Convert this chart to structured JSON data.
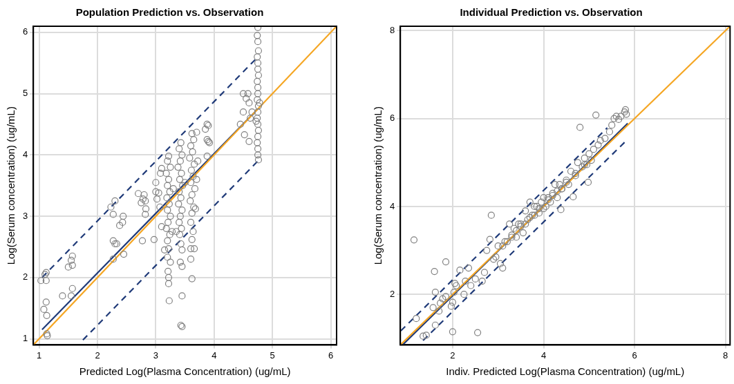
{
  "chart_data": [
    {
      "type": "scatter",
      "title": "Population Prediction vs. Observation",
      "xlabel": "Predicted Log(Plasma Concentration) (ug/mL)",
      "ylabel": "Log(Serum concentration) (ug/mL)",
      "xlim": [
        0.9,
        6.1
      ],
      "ylim": [
        0.9,
        6.1
      ],
      "xticks": [
        1,
        2,
        3,
        4,
        5,
        6
      ],
      "yticks": [
        1,
        2,
        3,
        4,
        5,
        6
      ],
      "grid": true,
      "legend": false,
      "series": [
        {
          "color": "#808080",
          "marker": "circle",
          "x": [
            1.03,
            1.1,
            1.12,
            1.12,
            1.08,
            1.12,
            1.13,
            1.13,
            1.14,
            1.4,
            1.5,
            1.55,
            1.57,
            1.57,
            1.57,
            1.55,
            2.23,
            2.3,
            2.27,
            2.27,
            2.3,
            2.33,
            2.27,
            2.38,
            2.43,
            2.44,
            2.45,
            2.7,
            2.75,
            2.78,
            2.8,
            2.82,
            2.83,
            2.82,
            2.77,
            2.97,
            3.0,
            3.02,
            3.07,
            3.05,
            3.08,
            3.1,
            3.0,
            3.1,
            3.22,
            3.2,
            3.25,
            3.18,
            3.22,
            3.2,
            3.24,
            3.19,
            3.23,
            3.2,
            3.25,
            3.21,
            3.18,
            3.24,
            3.2,
            3.22,
            3.2,
            3.25,
            3.21,
            3.22,
            3.22,
            3.23,
            3.15,
            3.28,
            3.3,
            3.43,
            3.4,
            3.45,
            3.42,
            3.38,
            3.44,
            3.41,
            3.46,
            3.4,
            3.43,
            3.39,
            3.45,
            3.42,
            3.4,
            3.44,
            3.41,
            3.43,
            3.45,
            3.42,
            3.45,
            3.45,
            3.43,
            3.45,
            3.35,
            3.5,
            3.62,
            3.65,
            3.6,
            3.63,
            3.58,
            3.66,
            3.61,
            3.64,
            3.6,
            3.67,
            3.62,
            3.59,
            3.65,
            3.62,
            3.6,
            3.64,
            3.62,
            3.6,
            3.66,
            3.6,
            3.62,
            3.7,
            3.72,
            3.7,
            3.68,
            3.85,
            3.88,
            3.9,
            3.88,
            3.9,
            3.92,
            3.88,
            4.45,
            4.5,
            4.52,
            4.6,
            4.5,
            4.55,
            4.6,
            4.65,
            4.58,
            4.62,
            4.75,
            4.74,
            4.75,
            4.76,
            4.74,
            4.75,
            4.75,
            4.76,
            4.74,
            4.75,
            4.75,
            4.74,
            4.76,
            4.75,
            4.74,
            4.75,
            4.76,
            4.75,
            4.74,
            4.75,
            4.75,
            4.76,
            4.72,
            4.78
          ],
          "values": [
            1.95,
            2.05,
            2.08,
            1.95,
            1.48,
            1.6,
            1.38,
            1.08,
            1.05,
            1.7,
            2.17,
            2.28,
            2.35,
            2.2,
            1.82,
            1.7,
            3.15,
            3.25,
            3.03,
            2.6,
            2.55,
            2.55,
            2.3,
            2.85,
            2.9,
            3.0,
            2.38,
            3.37,
            3.22,
            3.28,
            3.35,
            3.25,
            3.12,
            3.03,
            2.6,
            2.62,
            3.4,
            3.28,
            3.15,
            3.38,
            3.7,
            3.78,
            3.55,
            2.83,
            3.98,
            3.9,
            3.8,
            3.7,
            3.6,
            3.5,
            3.4,
            3.3,
            3.2,
            3.1,
            3.0,
            2.9,
            2.8,
            2.7,
            2.6,
            2.47,
            2.33,
            2.25,
            2.1,
            2.0,
            1.9,
            1.62,
            2.45,
            2.75,
            3.45,
            4.2,
            4.1,
            4.0,
            3.9,
            3.8,
            3.7,
            3.6,
            3.5,
            3.4,
            3.3,
            3.2,
            3.1,
            3.0,
            2.9,
            2.8,
            2.7,
            2.55,
            2.45,
            2.25,
            2.18,
            1.7,
            1.22,
            1.2,
            2.75,
            3.55,
            4.35,
            4.25,
            4.15,
            4.05,
            3.95,
            3.85,
            3.75,
            3.65,
            3.55,
            3.45,
            3.35,
            3.25,
            3.15,
            3.05,
            2.9,
            2.75,
            2.62,
            2.47,
            2.47,
            2.3,
            1.98,
            3.6,
            3.9,
            4.37,
            3.12,
            4.42,
            4.5,
            4.48,
            4.25,
            4.22,
            4.2,
            3.98,
            4.5,
            4.7,
            4.33,
            4.22,
            5.0,
            4.92,
            4.85,
            4.7,
            5.0,
            4.6,
            6.08,
            5.95,
            5.85,
            5.7,
            5.6,
            5.5,
            5.4,
            5.3,
            5.2,
            5.1,
            5.0,
            4.9,
            4.8,
            4.7,
            4.6,
            4.5,
            4.4,
            4.3,
            4.2,
            4.1,
            4.0,
            3.92,
            4.55,
            4.85
          ]
        },
        {
          "type": "line",
          "color": "#f5a623",
          "marker": "none",
          "line_style": "solid",
          "x": [
            0.9,
            6.1
          ],
          "values": [
            0.9,
            6.1
          ]
        },
        {
          "type": "line",
          "color": "#1f3a78",
          "marker": "none",
          "line_style": "solid",
          "x": [
            1.05,
            4.75
          ],
          "values": [
            1.15,
            4.75
          ]
        },
        {
          "type": "line",
          "color": "#1f3a78",
          "marker": "none",
          "line_style": "dashed",
          "x": [
            1.05,
            4.75
          ],
          "values": [
            2.0,
            5.6
          ]
        },
        {
          "type": "line",
          "color": "#1f3a78",
          "marker": "none",
          "line_style": "dashed",
          "x": [
            1.75,
            4.75
          ],
          "values": [
            0.98,
            3.9
          ]
        }
      ]
    },
    {
      "type": "scatter",
      "title": "Individual Prediction vs. Observation",
      "xlabel": "Indiv. Predicted Log(Plasma Concentration) (ug/mL)",
      "ylabel": "Log(Serum concentration) (ug/mL)",
      "xlim": [
        0.85,
        8.1
      ],
      "ylim": [
        0.85,
        8.1
      ],
      "xticks": [
        2,
        4,
        6,
        8
      ],
      "yticks": [
        2,
        4,
        6,
        8
      ],
      "grid": true,
      "legend": false,
      "series": [
        {
          "color": "#808080",
          "marker": "circle",
          "x": [
            1.15,
            1.2,
            1.35,
            1.42,
            1.6,
            1.62,
            1.62,
            1.57,
            1.7,
            1.73,
            1.78,
            1.85,
            1.85,
            1.97,
            2.0,
            2.0,
            2.03,
            2.05,
            2.08,
            2.16,
            2.25,
            2.28,
            2.35,
            2.4,
            2.55,
            2.5,
            2.7,
            2.65,
            2.75,
            2.82,
            2.85,
            2.9,
            3.05,
            3.1,
            3.1,
            3.2,
            3.25,
            3.3,
            3.35,
            3.4,
            3.45,
            3.5,
            3.55,
            3.6,
            3.65,
            3.7,
            3.75,
            3.8,
            3.85,
            3.9,
            3.95,
            4.0,
            4.05,
            4.1,
            4.15,
            4.2,
            4.25,
            4.3,
            4.35,
            4.38,
            4.4,
            4.5,
            4.55,
            4.65,
            4.6,
            4.7,
            4.75,
            4.8,
            4.85,
            4.9,
            4.95,
            4.98,
            5.0,
            5.05,
            5.1,
            5.15,
            5.2,
            5.25,
            5.35,
            5.45,
            5.5,
            5.55,
            5.6,
            5.65,
            5.7,
            5.78,
            5.82,
            5.8,
            3.0,
            3.15,
            3.3,
            3.5,
            3.7,
            3.9,
            4.1,
            4.3,
            4.5,
            4.7,
            4.9,
            2.95,
            3.4,
            3.6,
            3.8,
            4.0,
            4.2,
            4.4
          ],
          "values": [
            3.24,
            1.45,
            1.05,
            1.07,
            2.52,
            2.05,
            1.3,
            1.7,
            1.62,
            1.8,
            1.9,
            2.74,
            1.95,
            1.73,
            1.82,
            1.15,
            2.05,
            2.25,
            2.2,
            2.55,
            2.0,
            2.3,
            2.6,
            2.2,
            1.13,
            2.35,
            2.5,
            2.3,
            3.0,
            3.25,
            3.8,
            2.8,
            2.7,
            2.6,
            3.1,
            3.2,
            3.6,
            3.3,
            3.5,
            3.3,
            3.6,
            3.6,
            3.4,
            3.9,
            3.7,
            4.1,
            3.8,
            4.0,
            4.0,
            3.85,
            4.1,
            4.2,
            4.0,
            4.2,
            4.1,
            4.3,
            4.5,
            4.2,
            4.5,
            3.93,
            4.4,
            4.6,
            4.5,
            4.22,
            4.8,
            4.7,
            5.0,
            5.8,
            4.9,
            5.1,
            4.95,
            4.55,
            5.2,
            5.05,
            5.3,
            6.08,
            5.4,
            5.5,
            5.55,
            5.7,
            5.85,
            6.0,
            6.05,
            5.98,
            6.05,
            6.15,
            6.1,
            6.2,
            3.1,
            3.2,
            3.35,
            3.55,
            3.75,
            3.95,
            4.15,
            4.35,
            4.55,
            4.75,
            4.95,
            2.85,
            3.45,
            3.6,
            3.8,
            3.95,
            4.25,
            4.4
          ]
        },
        {
          "type": "line",
          "color": "#f5a623",
          "marker": "none",
          "line_style": "solid",
          "x": [
            0.85,
            8.1
          ],
          "values": [
            0.85,
            8.1
          ]
        },
        {
          "type": "line",
          "color": "#1f3a78",
          "marker": "none",
          "line_style": "solid",
          "x": [
            0.9,
            5.85
          ],
          "values": [
            0.85,
            5.89
          ]
        },
        {
          "type": "line",
          "color": "#1f3a78",
          "marker": "none",
          "line_style": "dashed",
          "x": [
            0.86,
            5.4
          ],
          "values": [
            1.17,
            5.79
          ]
        },
        {
          "type": "line",
          "color": "#1f3a78",
          "marker": "none",
          "line_style": "dashed",
          "x": [
            1.35,
            5.82
          ],
          "values": [
            0.95,
            5.5
          ]
        }
      ]
    }
  ]
}
